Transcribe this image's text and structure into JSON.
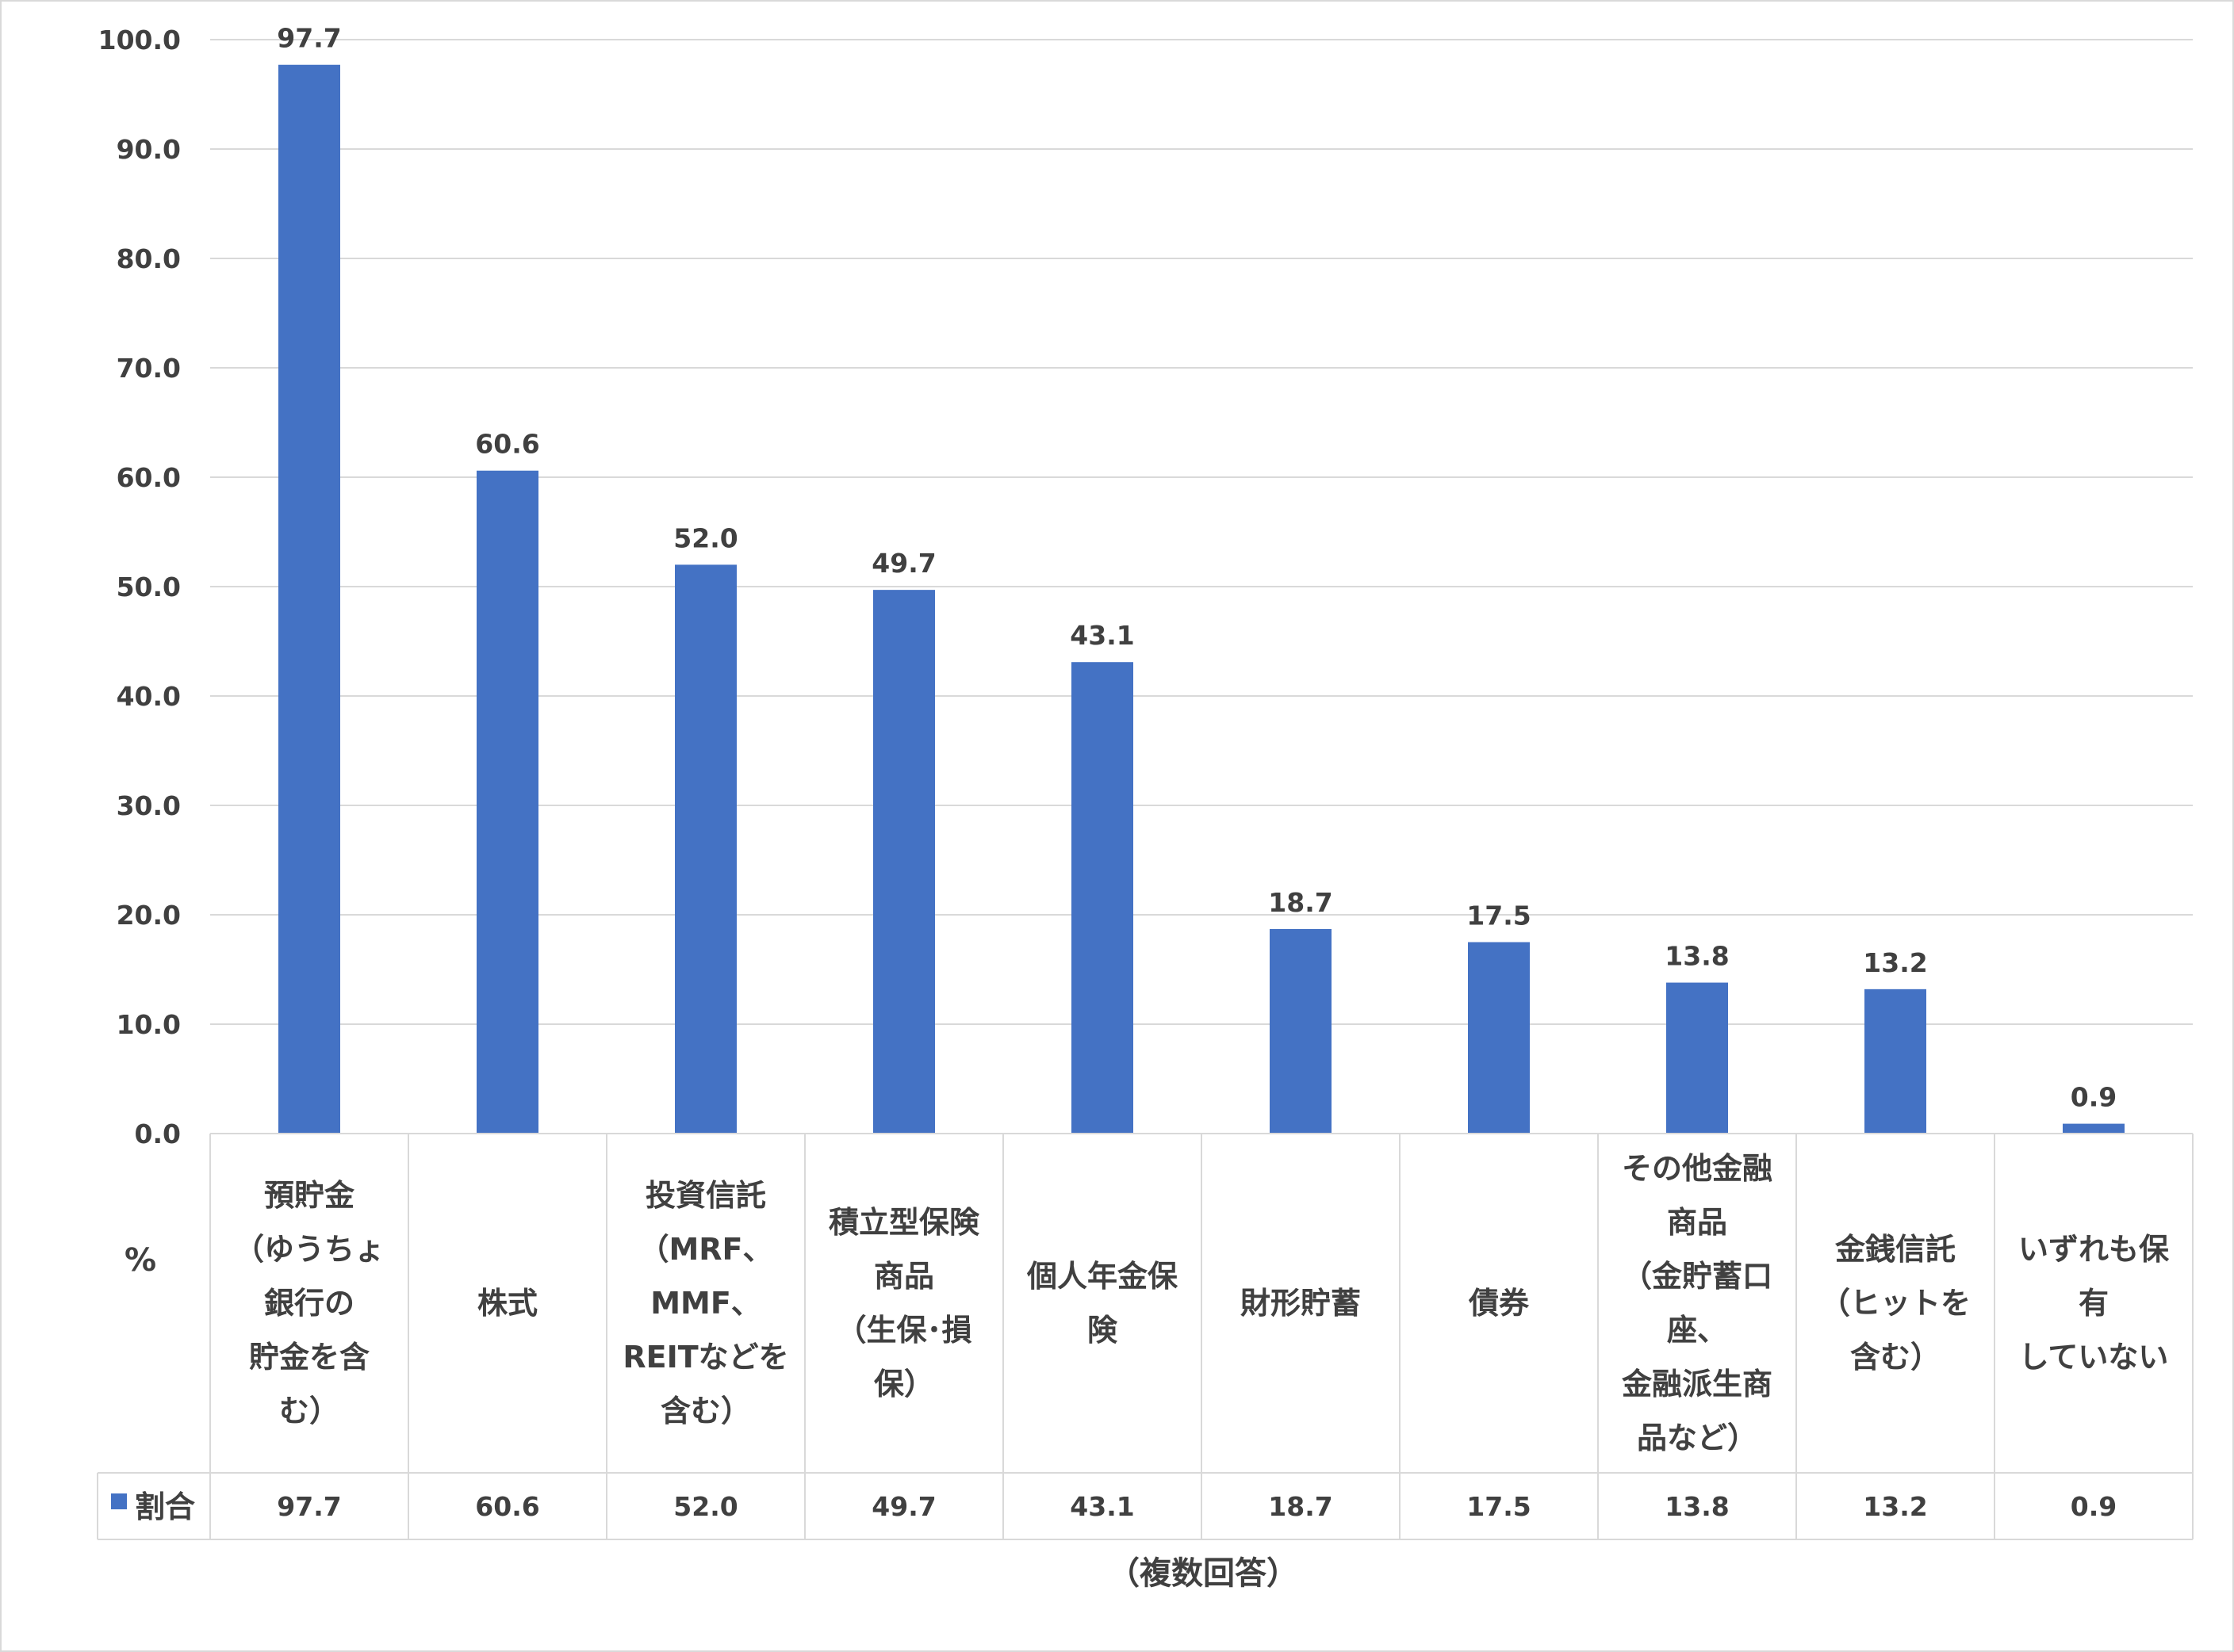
{
  "chart_data": {
    "type": "bar",
    "y_unit": "%",
    "categories": [
      [
        "預貯金",
        "（ゆうちょ",
        "銀行の",
        "貯金を含",
        "む）"
      ],
      [
        "株式"
      ],
      [
        "投資信託",
        "（MRF、",
        "MMF、",
        "REITなどを",
        "含む）"
      ],
      [
        "積立型保険",
        "商品",
        "（生保･損",
        "保）"
      ],
      [
        "個人年金保",
        "険"
      ],
      [
        "財形貯蓄"
      ],
      [
        "債券"
      ],
      [
        "その他金融",
        "商品",
        "（金貯蓄口",
        "座、",
        "金融派生商",
        "品など）"
      ],
      [
        "金銭信託",
        "（ヒットを",
        "含む）"
      ],
      [
        "いずれも保",
        "有",
        "していない"
      ]
    ],
    "series": [
      {
        "name": "割合",
        "values": [
          97.7,
          60.6,
          52.0,
          49.7,
          43.1,
          18.7,
          17.5,
          13.8,
          13.2,
          0.9
        ],
        "color": "#4472C4"
      }
    ],
    "ylim": [
      0,
      100
    ],
    "yticks": [
      "0.0",
      "10.0",
      "20.0",
      "30.0",
      "40.0",
      "50.0",
      "60.0",
      "70.0",
      "80.0",
      "90.0",
      "100.0"
    ],
    "grid": true,
    "legend": "data-table",
    "footnote": "（複数回答）"
  }
}
